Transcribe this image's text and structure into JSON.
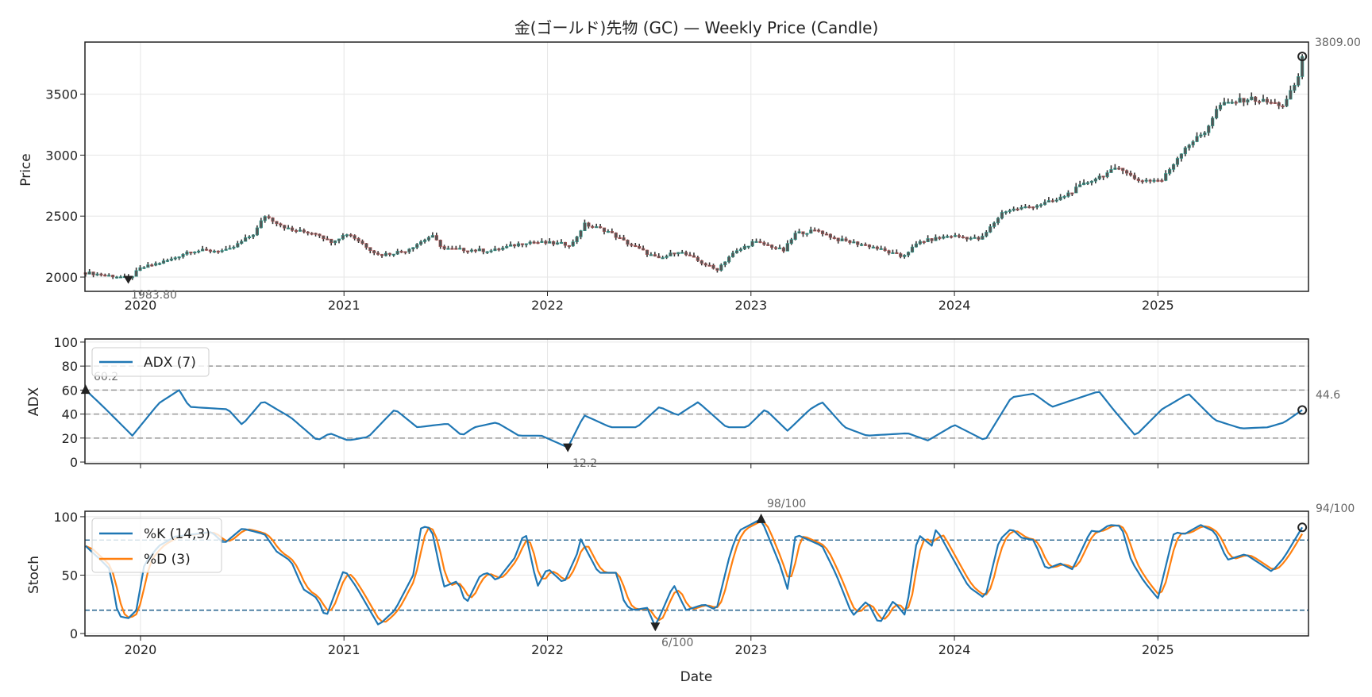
{
  "chart_data": [
    {
      "type": "candlestick",
      "title": "金(ゴールド)先物 (GC) — Weekly Price (Candle)",
      "ylabel": "Price",
      "ylim": [
        1883,
        3927
      ],
      "xlim": [
        2019.727,
        2025.74
      ],
      "yticks": [
        "2000",
        "2500",
        "3000",
        "3500"
      ],
      "xticks": [
        "2020",
        "2021",
        "2022",
        "2023",
        "2024",
        "2025"
      ],
      "close_anchors": [
        [
          2019.73,
          2036
        ],
        [
          2019.91,
          2000
        ],
        [
          2019.94,
          1984
        ],
        [
          2020.0,
          2072
        ],
        [
          2020.15,
          2144
        ],
        [
          2020.24,
          2216
        ],
        [
          2020.43,
          2216
        ],
        [
          2020.56,
          2360
        ],
        [
          2020.61,
          2505
        ],
        [
          2020.74,
          2382
        ],
        [
          2020.87,
          2360
        ],
        [
          2020.93,
          2289
        ],
        [
          2021.02,
          2360
        ],
        [
          2021.17,
          2180
        ],
        [
          2021.3,
          2216
        ],
        [
          2021.43,
          2340
        ],
        [
          2021.49,
          2231
        ],
        [
          2021.73,
          2216
        ],
        [
          2021.9,
          2289
        ],
        [
          2022.12,
          2267
        ],
        [
          2022.18,
          2433
        ],
        [
          2022.29,
          2382
        ],
        [
          2022.38,
          2289
        ],
        [
          2022.55,
          2144
        ],
        [
          2022.64,
          2216
        ],
        [
          2022.77,
          2108
        ],
        [
          2022.83,
          2058
        ],
        [
          2022.9,
          2180
        ],
        [
          2023.01,
          2289
        ],
        [
          2023.1,
          2253
        ],
        [
          2023.16,
          2216
        ],
        [
          2023.22,
          2360
        ],
        [
          2023.33,
          2382
        ],
        [
          2023.42,
          2310
        ],
        [
          2023.59,
          2253
        ],
        [
          2023.74,
          2166
        ],
        [
          2023.83,
          2289
        ],
        [
          2023.98,
          2340
        ],
        [
          2024.13,
          2310
        ],
        [
          2024.24,
          2541
        ],
        [
          2024.37,
          2577
        ],
        [
          2024.5,
          2628
        ],
        [
          2024.67,
          2794
        ],
        [
          2024.82,
          2902
        ],
        [
          2024.89,
          2794
        ],
        [
          2025.02,
          2794
        ],
        [
          2025.13,
          3060
        ],
        [
          2025.23,
          3190
        ],
        [
          2025.3,
          3407
        ],
        [
          2025.45,
          3465
        ],
        [
          2025.62,
          3407
        ],
        [
          2025.69,
          3638
        ],
        [
          2025.72,
          3809
        ]
      ],
      "annotations": {
        "min_label": "1983.80",
        "min_value": 1983.8,
        "min_x": 2019.94,
        "last_label": "3809.00",
        "last_value": 3809
      }
    },
    {
      "type": "line",
      "ylabel": "ADX",
      "ylim": [
        0,
        100
      ],
      "yticks": [
        "0",
        "20",
        "40",
        "60",
        "80",
        "100"
      ],
      "ref_lines": [
        20,
        40,
        60,
        80
      ],
      "legend": "ADX (7)",
      "legend_position": "top-left",
      "anchors": [
        [
          2019.73,
          60.2
        ],
        [
          2019.83,
          44
        ],
        [
          2019.96,
          22
        ],
        [
          2020.09,
          49
        ],
        [
          2020.19,
          60
        ],
        [
          2020.24,
          46
        ],
        [
          2020.43,
          44
        ],
        [
          2020.5,
          31
        ],
        [
          2020.6,
          51
        ],
        [
          2020.74,
          37
        ],
        [
          2020.87,
          18
        ],
        [
          2020.93,
          24
        ],
        [
          2021.02,
          18
        ],
        [
          2021.12,
          21
        ],
        [
          2021.25,
          44
        ],
        [
          2021.36,
          29
        ],
        [
          2021.51,
          32
        ],
        [
          2021.58,
          22
        ],
        [
          2021.64,
          29
        ],
        [
          2021.75,
          33
        ],
        [
          2021.86,
          22
        ],
        [
          2021.97,
          22
        ],
        [
          2022.1,
          12.2
        ],
        [
          2022.18,
          39
        ],
        [
          2022.31,
          29
        ],
        [
          2022.44,
          29
        ],
        [
          2022.55,
          46
        ],
        [
          2022.64,
          39
        ],
        [
          2022.74,
          50
        ],
        [
          2022.88,
          29
        ],
        [
          2022.98,
          29
        ],
        [
          2023.07,
          44
        ],
        [
          2023.18,
          26
        ],
        [
          2023.29,
          44
        ],
        [
          2023.35,
          50
        ],
        [
          2023.46,
          29
        ],
        [
          2023.57,
          22
        ],
        [
          2023.77,
          24
        ],
        [
          2023.87,
          18
        ],
        [
          2024.0,
          31
        ],
        [
          2024.15,
          18
        ],
        [
          2024.28,
          54
        ],
        [
          2024.39,
          57
        ],
        [
          2024.48,
          46
        ],
        [
          2024.71,
          59
        ],
        [
          2024.78,
          44
        ],
        [
          2024.89,
          22
        ],
        [
          2025.02,
          44
        ],
        [
          2025.15,
          57
        ],
        [
          2025.28,
          35
        ],
        [
          2025.41,
          28
        ],
        [
          2025.54,
          29
        ],
        [
          2025.62,
          33
        ],
        [
          2025.72,
          44.6
        ]
      ],
      "annotations": {
        "first_label": "60.2",
        "min_label": "12.2",
        "last_label": "44.6"
      }
    },
    {
      "type": "line",
      "ylabel": "Stoch",
      "xlabel": "Date",
      "ylim": [
        0,
        100
      ],
      "yticks": [
        "0",
        "50",
        "100"
      ],
      "xticks": [
        "2020",
        "2021",
        "2022",
        "2023",
        "2024",
        "2025"
      ],
      "ref_lines": [
        20,
        80
      ],
      "legend": [
        "%K (14,3)",
        "%D (3)"
      ],
      "legend_position": "top-left",
      "k_anchors": [
        [
          2019.73,
          75
        ],
        [
          2019.81,
          62
        ],
        [
          2019.85,
          55
        ],
        [
          2019.89,
          15
        ],
        [
          2019.94,
          13
        ],
        [
          2019.98,
          20
        ],
        [
          2020.02,
          60
        ],
        [
          2020.09,
          75
        ],
        [
          2020.17,
          83
        ],
        [
          2020.35,
          87
        ],
        [
          2020.41,
          77
        ],
        [
          2020.5,
          90
        ],
        [
          2020.61,
          85
        ],
        [
          2020.67,
          70
        ],
        [
          2020.74,
          62
        ],
        [
          2020.8,
          38
        ],
        [
          2020.87,
          30
        ],
        [
          2020.91,
          13
        ],
        [
          2021.0,
          55
        ],
        [
          2021.06,
          40
        ],
        [
          2021.17,
          7
        ],
        [
          2021.25,
          20
        ],
        [
          2021.34,
          50
        ],
        [
          2021.38,
          92
        ],
        [
          2021.43,
          90
        ],
        [
          2021.49,
          40
        ],
        [
          2021.56,
          45
        ],
        [
          2021.6,
          25
        ],
        [
          2021.67,
          50
        ],
        [
          2021.71,
          52
        ],
        [
          2021.75,
          45
        ],
        [
          2021.84,
          65
        ],
        [
          2021.89,
          88
        ],
        [
          2021.95,
          40
        ],
        [
          2022.0,
          56
        ],
        [
          2022.08,
          43
        ],
        [
          2022.15,
          70
        ],
        [
          2022.16,
          82
        ],
        [
          2022.25,
          52
        ],
        [
          2022.34,
          52
        ],
        [
          2022.38,
          25
        ],
        [
          2022.42,
          20
        ],
        [
          2022.49,
          22
        ],
        [
          2022.53,
          6
        ],
        [
          2022.62,
          42
        ],
        [
          2022.68,
          20
        ],
        [
          2022.77,
          25
        ],
        [
          2022.83,
          20
        ],
        [
          2022.9,
          70
        ],
        [
          2022.94,
          88
        ],
        [
          2023.05,
          98
        ],
        [
          2023.14,
          60
        ],
        [
          2023.18,
          38
        ],
        [
          2023.22,
          85
        ],
        [
          2023.35,
          75
        ],
        [
          2023.42,
          50
        ],
        [
          2023.5,
          15
        ],
        [
          2023.57,
          28
        ],
        [
          2023.63,
          8
        ],
        [
          2023.7,
          28
        ],
        [
          2023.76,
          15
        ],
        [
          2023.82,
          85
        ],
        [
          2023.89,
          75
        ],
        [
          2023.91,
          90
        ],
        [
          2023.98,
          68
        ],
        [
          2024.07,
          40
        ],
        [
          2024.15,
          30
        ],
        [
          2024.22,
          80
        ],
        [
          2024.28,
          90
        ],
        [
          2024.33,
          82
        ],
        [
          2024.39,
          80
        ],
        [
          2024.45,
          55
        ],
        [
          2024.52,
          60
        ],
        [
          2024.58,
          55
        ],
        [
          2024.67,
          88
        ],
        [
          2024.71,
          87
        ],
        [
          2024.76,
          93
        ],
        [
          2024.82,
          92
        ],
        [
          2024.87,
          62
        ],
        [
          2024.93,
          45
        ],
        [
          2025.0,
          30
        ],
        [
          2025.08,
          87
        ],
        [
          2025.13,
          85
        ],
        [
          2025.21,
          93
        ],
        [
          2025.28,
          87
        ],
        [
          2025.34,
          63
        ],
        [
          2025.43,
          68
        ],
        [
          2025.5,
          60
        ],
        [
          2025.56,
          53
        ],
        [
          2025.62,
          65
        ],
        [
          2025.72,
          94
        ]
      ],
      "d_period": 3,
      "annotations": {
        "max_label": "98/100",
        "min_label": "6/100",
        "last_label": "94/100"
      }
    }
  ],
  "colors": {
    "k": "#1f77b4",
    "d": "#ff7f0e",
    "adx": "#1f77b4",
    "up_edge": "#2a9d8f",
    "down_edge": "#b05050",
    "body": "#555555"
  }
}
